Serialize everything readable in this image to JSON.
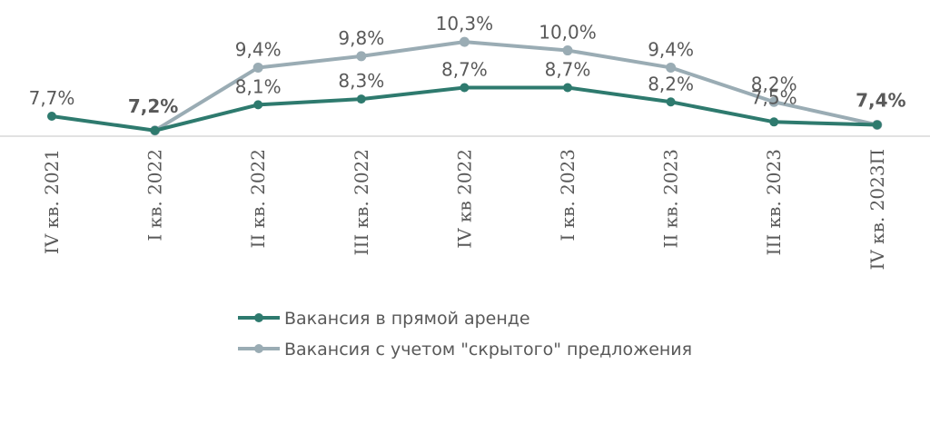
{
  "chart_data": {
    "type": "line",
    "categories": [
      "IV кв. 2021",
      "I кв. 2022",
      "II кв. 2022",
      "III кв. 2022",
      "IV кв 2022",
      "I кв. 2023",
      "II кв. 2023",
      "III кв. 2023",
      "IV кв. 2023П"
    ],
    "series": [
      {
        "name": "Вакансия в прямой аренде",
        "color": "#2e7a6e",
        "values": [
          7.7,
          7.2,
          8.1,
          8.3,
          8.7,
          8.7,
          8.2,
          7.5,
          7.4
        ],
        "labels": [
          "7,7%",
          "7,2%",
          "8,1%",
          "8,3%",
          "8,7%",
          "8,7%",
          "8,2%",
          "7,5%",
          "7,4%"
        ]
      },
      {
        "name": "Вакансия с учетом \"скрытого\" предложения",
        "color": "#9aacb4",
        "values": [
          null,
          7.2,
          9.4,
          9.8,
          10.3,
          10.0,
          9.4,
          8.2,
          7.4
        ],
        "labels": [
          null,
          null,
          "9,4%",
          "9,8%",
          "10,3%",
          "10,0%",
          "9,4%",
          "8,2%",
          null
        ]
      }
    ],
    "bold_labels": [
      1,
      8
    ],
    "axis_baseline": 7.0,
    "grid": false,
    "legend_position": "bottom"
  }
}
